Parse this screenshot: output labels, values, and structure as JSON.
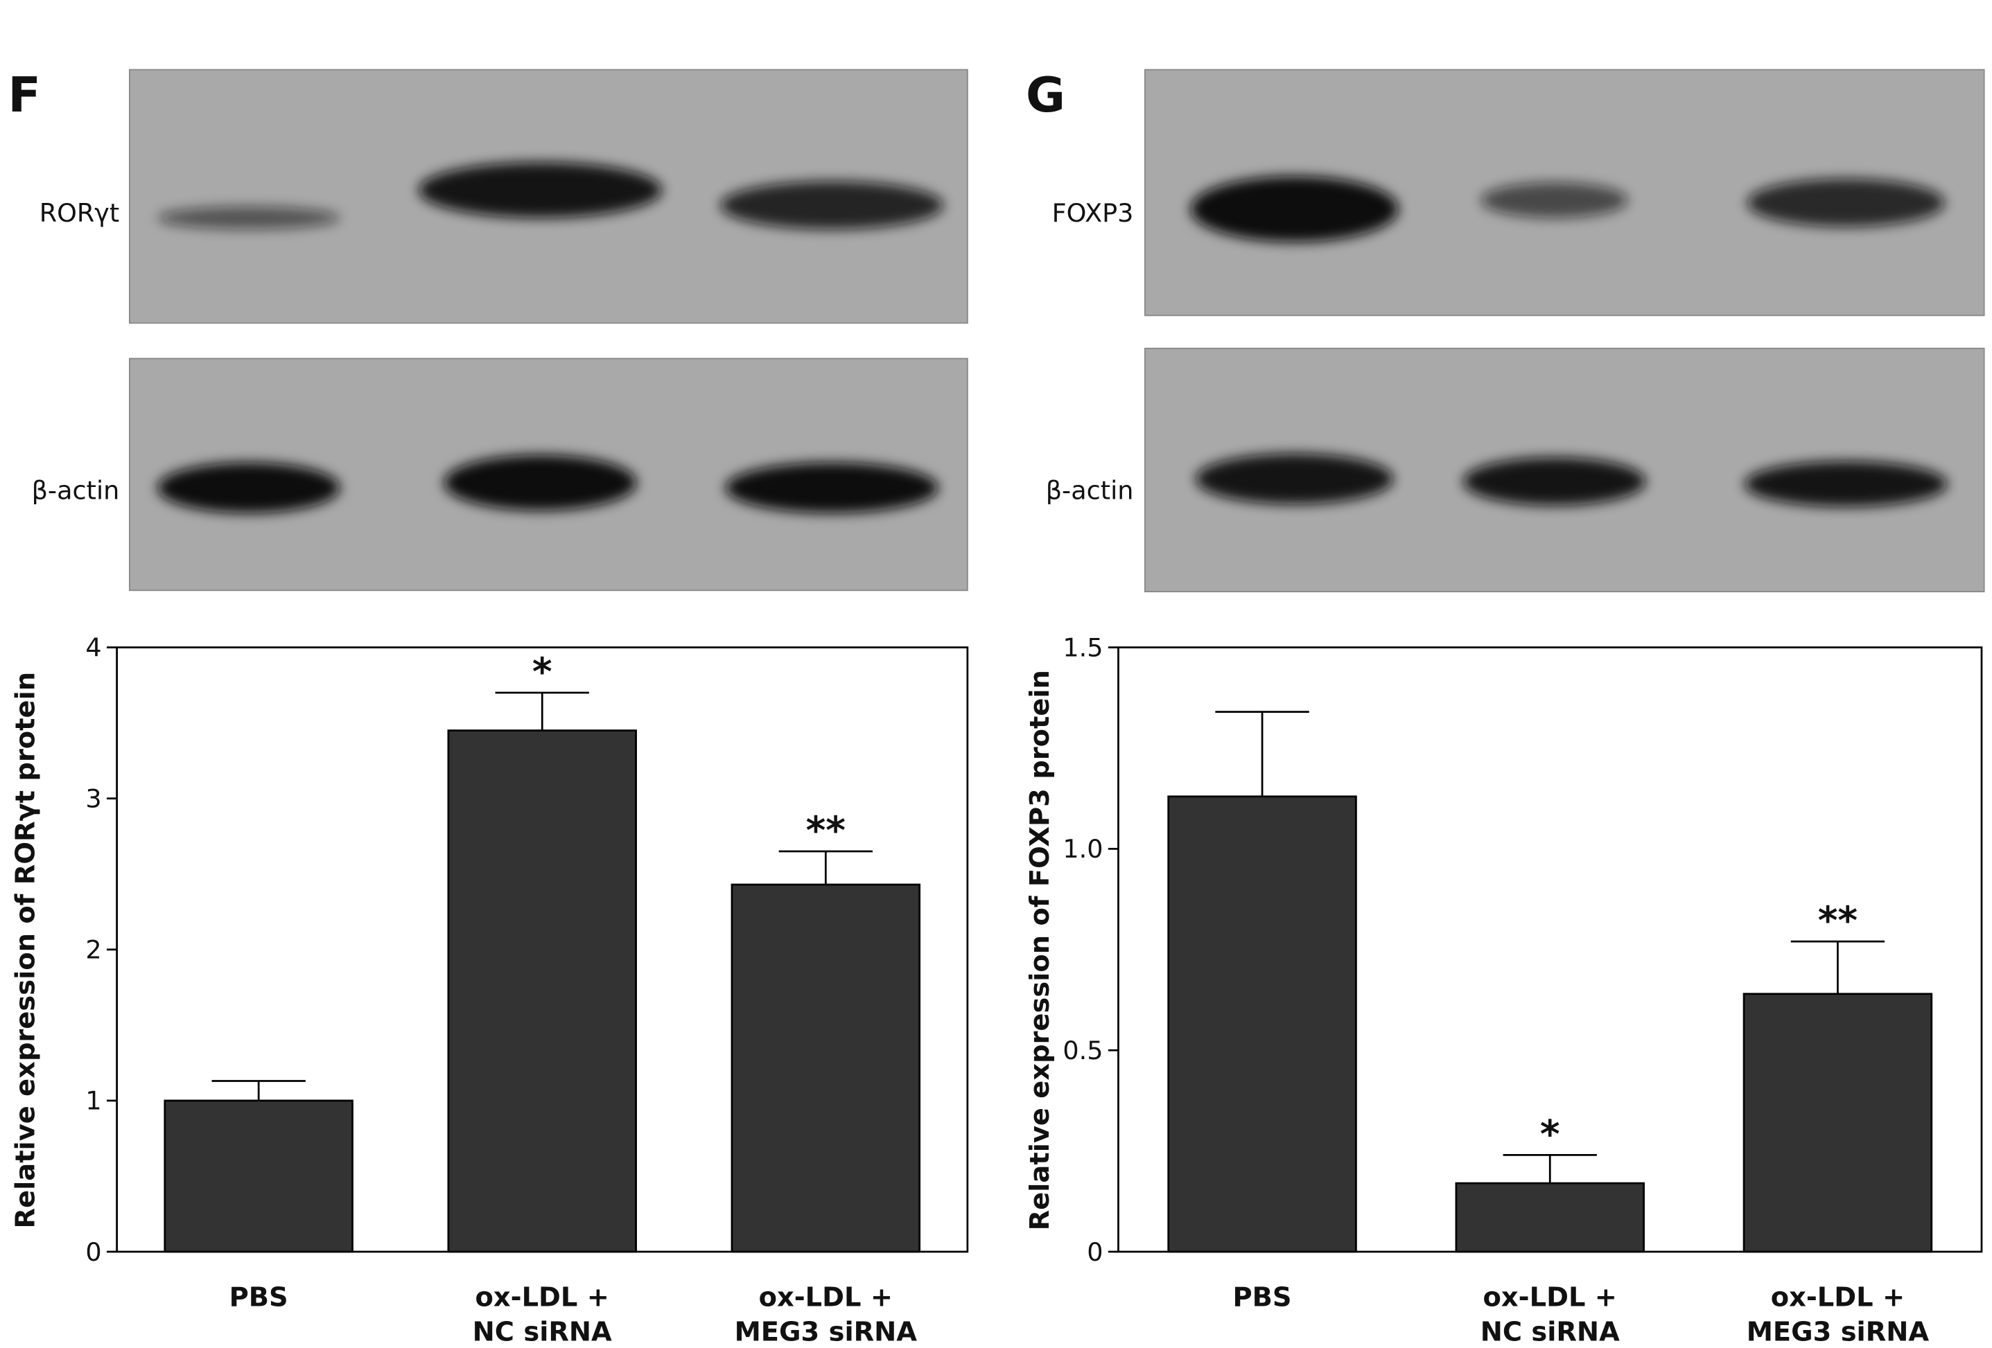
{
  "chart_data": [
    {
      "type": "bar",
      "panel": "F",
      "blot_labels": [
        "RORγt",
        "β-actin"
      ],
      "y_label": "Relative expression of RORγt protein",
      "categories": [
        "PBS",
        "ox-LDL +\nNC siRNA",
        "ox-LDL +\nMEG3 siRNA"
      ],
      "values": [
        1.0,
        3.45,
        2.43
      ],
      "errors": [
        0.13,
        0.25,
        0.22
      ],
      "significance": [
        null,
        "*",
        "**"
      ],
      "color": "#333333",
      "ylim": [
        0,
        4
      ],
      "yticks": [
        0,
        1,
        2,
        3,
        4
      ]
    },
    {
      "type": "bar",
      "panel": "G",
      "blot_labels": [
        "FOXP3",
        "β-actin"
      ],
      "y_label": "Relative expression of FOXP3 protein",
      "categories": [
        "PBS",
        "ox-LDL +\nNC siRNA",
        "ox-LDL +\nMEG3 siRNA"
      ],
      "values": [
        1.13,
        0.17,
        0.64
      ],
      "errors": [
        0.21,
        0.07,
        0.13
      ],
      "significance": [
        null,
        "*",
        "**"
      ],
      "color": "#333333",
      "ylim": [
        0,
        1.5
      ],
      "yticks": [
        0,
        0.5,
        {
          "value": 1.0,
          "label": "1.0"
        },
        1.5
      ]
    }
  ]
}
